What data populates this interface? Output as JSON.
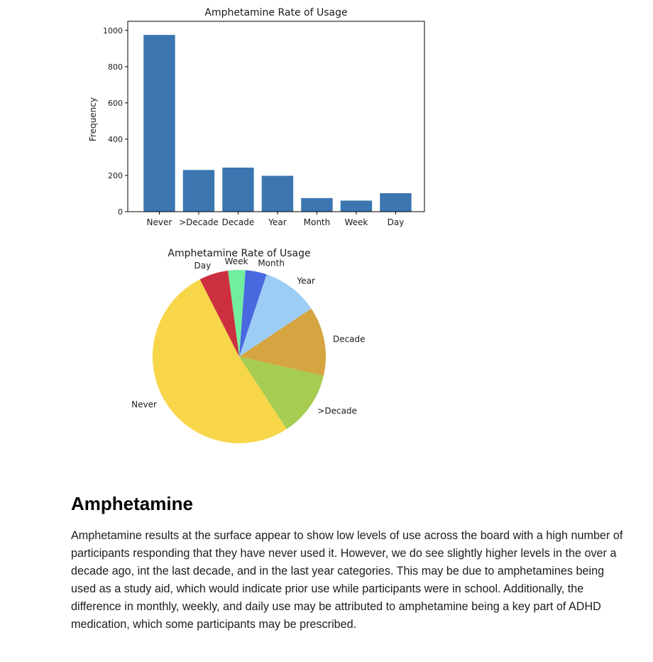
{
  "chart_data": [
    {
      "type": "bar",
      "title": "Amphetamine Rate of Usage",
      "xlabel": "",
      "ylabel": "Frequency",
      "categories": [
        "Never",
        ">Decade",
        "Decade",
        "Year",
        "Month",
        "Week",
        "Day"
      ],
      "values": [
        975,
        230,
        243,
        198,
        75,
        61,
        102
      ],
      "ylim": [
        0,
        1050
      ],
      "yticks": [
        0,
        200,
        400,
        600,
        800,
        1000
      ],
      "color": "#3b76b0",
      "grid": false
    },
    {
      "type": "pie",
      "title": "Amphetamine Rate of Usage",
      "labels": [
        "Never",
        ">Decade",
        "Decade",
        "Year",
        "Month",
        "Week",
        "Day"
      ],
      "values": [
        975,
        230,
        243,
        198,
        75,
        61,
        102
      ],
      "colors": [
        "#f7d64a",
        "#a6cc51",
        "#d4a541",
        "#9ccdf5",
        "#4868e0",
        "#72eea0",
        "#cc3040"
      ]
    }
  ],
  "text": {
    "heading": "Amphetamine",
    "paragraph": "Amphetamine results at the surface appear to show low levels of use across the board with a high number of participants responding that they have never used it. However, we do see slightly higher levels in the over a decade ago, int the last decade, and in the last year categories. This may be due to amphetamines being used as a study aid, which would indicate prior use while participants were in school. Additionally, the difference in monthly, weekly, and daily use may be attributed to amphetamine being a key part of ADHD medication, which some participants may be prescribed."
  }
}
